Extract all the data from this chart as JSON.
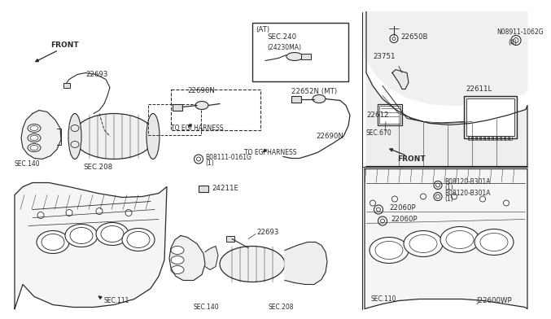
{
  "bg_color": "#ffffff",
  "lc": "#2a2a2a",
  "watermark": "J22600WP",
  "fs": 5.5,
  "fn": 6.2,
  "labels": {
    "front1": "FRONT",
    "front2": "FRONT",
    "22693a": "22693",
    "22693b": "22693",
    "22690Na": "22690N",
    "22690Nb": "22690N",
    "22652N": "22652N (MT)",
    "at": "(AT)",
    "sec240": "SEC.240",
    "sec240b": "(24230MA)",
    "sec140a": "SEC.140",
    "sec208a": "SEC.208",
    "sec111": "SEC.111",
    "sec140b": "SEC.140",
    "sec208b": "SEC.208",
    "sec670": "SEC.670",
    "sec110": "SEC.110",
    "egi1": "TO EGI HARNESS",
    "egi2": "TO EGI HARNESS",
    "08111": "B08111-0161G",
    "08111s": "(1)",
    "24211E": "24211E",
    "22650B": "22650B",
    "23751": "23751",
    "22612": "22612",
    "22611L": "22611L",
    "08911": "N08911-1062G",
    "08911s": "(4)",
    "22060Pa": "22060P",
    "22060Pb": "22060P",
    "08120a": "B08120-B301A",
    "08120as": "(1)",
    "08120b": "B08120-B301A",
    "08120bs": "(1)"
  }
}
